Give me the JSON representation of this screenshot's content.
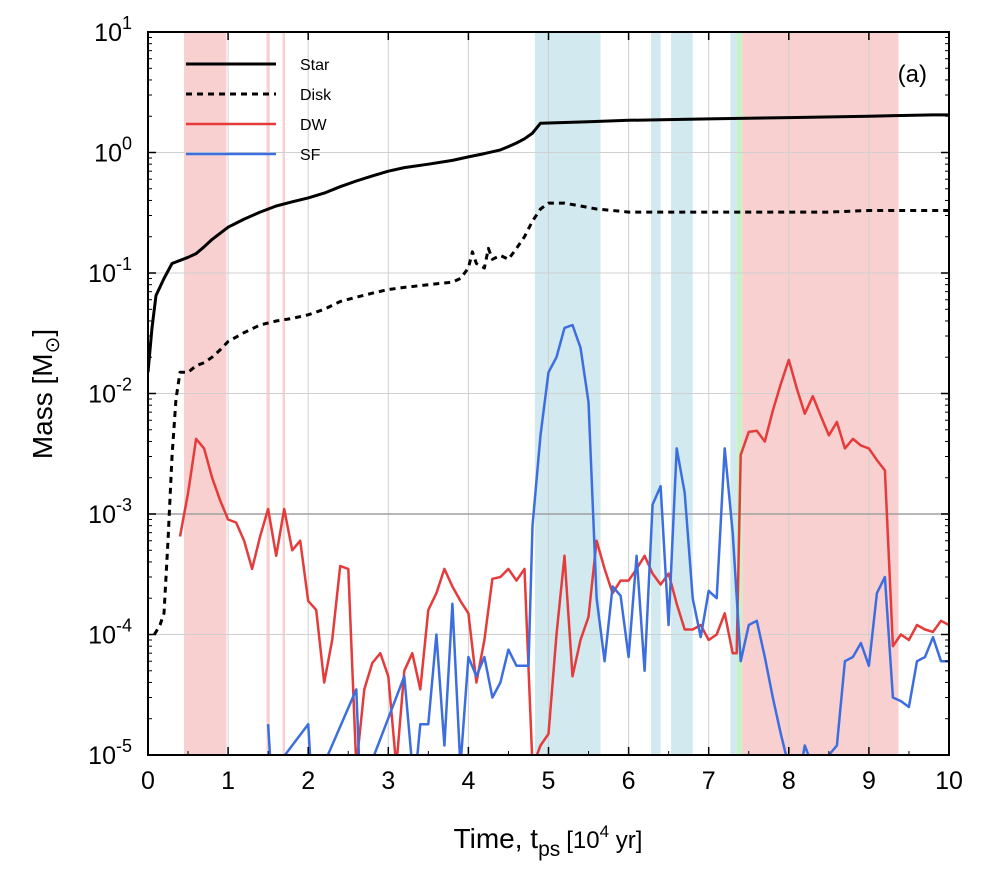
{
  "chart_data": {
    "type": "line",
    "panel_label": "(a)",
    "xlabel_main": "Time, t",
    "xlabel_sub": "ps",
    "xlabel_units_pre": "[10",
    "xlabel_units_sup": "4",
    "xlabel_units_post": " yr]",
    "ylabel_main": "Mass [M",
    "ylabel_sub": "⊙",
    "ylabel_post": "]",
    "xlim": [
      0,
      10
    ],
    "ylim": [
      1e-05,
      10
    ],
    "yscale": "log",
    "grid": true,
    "legend_position": "top-left",
    "x_ticks": [
      "0",
      "1",
      "2",
      "3",
      "4",
      "5",
      "6",
      "7",
      "8",
      "9",
      "10"
    ],
    "y_ticks": [
      {
        "base": "10",
        "exp": "-5",
        "value": 1e-05
      },
      {
        "base": "10",
        "exp": "-4",
        "value": 0.0001
      },
      {
        "base": "10",
        "exp": "-3",
        "value": 0.001
      },
      {
        "base": "10",
        "exp": "-2",
        "value": 0.01
      },
      {
        "base": "10",
        "exp": "-1",
        "value": 0.1
      },
      {
        "base": "10",
        "exp": "0",
        "value": 1
      },
      {
        "base": "10",
        "exp": "1",
        "value": 10
      }
    ],
    "reference_line": {
      "y": 0.001,
      "color": "#a0a0a0"
    },
    "shaded_regions": [
      {
        "type": "DW",
        "x0": 0.45,
        "x1": 0.98,
        "color": "#f8d0d0"
      },
      {
        "type": "DW",
        "x0": 1.48,
        "x1": 1.52,
        "color": "#f8d0d0"
      },
      {
        "type": "DW",
        "x0": 1.68,
        "x1": 1.71,
        "color": "#f8d0d0"
      },
      {
        "type": "SF",
        "x0": 4.83,
        "x1": 5.65,
        "color": "#d2e9f0"
      },
      {
        "type": "SF",
        "x0": 6.28,
        "x1": 6.4,
        "color": "#d2e9f0"
      },
      {
        "type": "SF",
        "x0": 6.53,
        "x1": 6.8,
        "color": "#d2e9f0"
      },
      {
        "type": "SF",
        "x0": 7.27,
        "x1": 7.35,
        "color": "#d2e9f0"
      },
      {
        "type": "other",
        "x0": 7.35,
        "x1": 7.42,
        "color": "#c6f2c6"
      },
      {
        "type": "DW",
        "x0": 7.42,
        "x1": 9.37,
        "color": "#f8d0d0"
      }
    ],
    "series": [
      {
        "name": "Star",
        "color": "#000000",
        "dash": "solid",
        "width": 3,
        "x": [
          0,
          0.05,
          0.1,
          0.2,
          0.3,
          0.5,
          0.6,
          0.7,
          0.8,
          1,
          1.2,
          1.4,
          1.6,
          1.8,
          2,
          2.2,
          2.4,
          2.6,
          2.8,
          3,
          3.2,
          3.5,
          3.8,
          4,
          4.2,
          4.4,
          4.5,
          4.6,
          4.7,
          4.8,
          4.9,
          5.5,
          6,
          7,
          8,
          9,
          9.8,
          10
        ],
        "y": [
          0.015,
          0.035,
          0.065,
          0.09,
          0.12,
          0.135,
          0.145,
          0.165,
          0.19,
          0.24,
          0.28,
          0.32,
          0.36,
          0.39,
          0.42,
          0.46,
          0.52,
          0.58,
          0.64,
          0.7,
          0.75,
          0.8,
          0.86,
          0.92,
          0.98,
          1.05,
          1.12,
          1.2,
          1.3,
          1.45,
          1.75,
          1.8,
          1.85,
          1.9,
          1.95,
          2.0,
          2.05,
          2.05
        ]
      },
      {
        "name": "Disk",
        "color": "#000000",
        "dash": "dotted",
        "width": 3,
        "x": [
          0.08,
          0.15,
          0.2,
          0.25,
          0.3,
          0.35,
          0.4,
          0.5,
          0.6,
          0.7,
          0.8,
          0.9,
          1,
          1.2,
          1.4,
          1.6,
          1.8,
          2,
          2.2,
          2.4,
          2.6,
          2.8,
          3,
          3.2,
          3.5,
          3.8,
          3.9,
          4,
          4.05,
          4.1,
          4.2,
          4.25,
          4.3,
          4.4,
          4.5,
          4.6,
          4.7,
          4.8,
          4.9,
          5,
          5.2,
          5.4,
          5.6,
          5.8,
          6,
          6.2,
          6.5,
          7,
          7.5,
          8,
          8.5,
          9,
          9.5,
          10
        ],
        "y": [
          0.0001,
          0.00012,
          0.00015,
          0.0006,
          0.003,
          0.009,
          0.015,
          0.015,
          0.017,
          0.018,
          0.02,
          0.023,
          0.027,
          0.032,
          0.037,
          0.04,
          0.042,
          0.045,
          0.05,
          0.058,
          0.063,
          0.068,
          0.073,
          0.076,
          0.08,
          0.084,
          0.09,
          0.11,
          0.15,
          0.12,
          0.11,
          0.16,
          0.13,
          0.14,
          0.13,
          0.16,
          0.2,
          0.27,
          0.34,
          0.38,
          0.38,
          0.36,
          0.34,
          0.33,
          0.32,
          0.32,
          0.32,
          0.32,
          0.32,
          0.32,
          0.32,
          0.33,
          0.33,
          0.33
        ]
      },
      {
        "name": "DW",
        "color": "#e53b3b",
        "dash": "solid",
        "width": 2.5,
        "x": [
          0.4,
          0.5,
          0.6,
          0.7,
          0.8,
          0.9,
          1,
          1.1,
          1.2,
          1.3,
          1.4,
          1.5,
          1.6,
          1.7,
          1.8,
          1.9,
          2,
          2.1,
          2.2,
          2.3,
          2.4,
          2.5,
          2.6,
          2.7,
          2.8,
          2.9,
          3,
          3.1,
          3.2,
          3.3,
          3.4,
          3.5,
          3.6,
          3.7,
          3.8,
          3.9,
          4,
          4.1,
          4.2,
          4.3,
          4.4,
          4.5,
          4.6,
          4.7,
          4.8,
          4.9,
          5,
          5.1,
          5.2,
          5.3,
          5.4,
          5.5,
          5.6,
          5.7,
          5.8,
          5.9,
          6,
          6.1,
          6.2,
          6.3,
          6.4,
          6.5,
          6.6,
          6.7,
          6.8,
          6.9,
          7,
          7.1,
          7.2,
          7.3,
          7.35,
          7.4,
          7.5,
          7.6,
          7.7,
          7.8,
          7.9,
          8,
          8.1,
          8.2,
          8.3,
          8.4,
          8.5,
          8.6,
          8.7,
          8.8,
          8.9,
          9,
          9.1,
          9.2,
          9.3,
          9.4,
          9.5,
          9.6,
          9.7,
          9.8,
          9.9,
          10
        ],
        "y": [
          0.00065,
          0.0015,
          0.0042,
          0.0035,
          0.002,
          0.0013,
          0.0009,
          0.00085,
          0.0006,
          0.00035,
          0.00065,
          0.0011,
          0.00045,
          0.0011,
          0.0005,
          0.0006,
          0.00019,
          0.00016,
          4e-05,
          9e-05,
          0.00037,
          0.00035,
          8e-06,
          3.5e-05,
          5.8e-05,
          7e-05,
          4.5e-05,
          8e-06,
          5e-05,
          7e-05,
          3.5e-05,
          0.00016,
          0.00022,
          0.00035,
          0.00025,
          0.00019,
          0.00015,
          4e-05,
          9e-05,
          0.00029,
          0.0003,
          0.00035,
          0.00028,
          0.00035,
          8e-06,
          1.2e-05,
          1.5e-05,
          0.0001,
          0.00045,
          4.5e-05,
          9e-05,
          0.00014,
          0.0006,
          0.00035,
          0.00022,
          0.00028,
          0.00028,
          0.00035,
          0.00045,
          0.00032,
          0.00026,
          0.00032,
          0.00018,
          0.00011,
          0.00011,
          0.00012,
          9e-05,
          0.0001,
          0.00015,
          7e-05,
          7e-05,
          0.0031,
          0.0048,
          0.0049,
          0.004,
          0.0072,
          0.012,
          0.019,
          0.011,
          0.0068,
          0.0095,
          0.0065,
          0.0045,
          0.0058,
          0.0035,
          0.0042,
          0.0037,
          0.0035,
          0.0028,
          0.0023,
          8e-05,
          0.0001,
          9e-05,
          0.00012,
          0.00011,
          0.000105,
          0.00013,
          0.00012
        ]
      },
      {
        "name": "SF",
        "color": "#3d6ee0",
        "dash": "solid",
        "width": 2.5,
        "x": [
          1.5,
          1.55,
          1.6,
          2,
          2.05,
          2.6,
          2.65,
          3.2,
          3.3,
          3.35,
          3.4,
          3.5,
          3.6,
          3.7,
          3.8,
          3.9,
          4,
          4.1,
          4.2,
          4.3,
          4.4,
          4.5,
          4.6,
          4.7,
          4.75,
          4.8,
          4.9,
          5,
          5.1,
          5.2,
          5.3,
          5.4,
          5.5,
          5.6,
          5.7,
          5.8,
          5.9,
          6,
          6.1,
          6.2,
          6.3,
          6.4,
          6.5,
          6.6,
          6.7,
          6.8,
          6.9,
          7,
          7.1,
          7.2,
          7.3,
          7.4,
          7.5,
          7.6,
          7.7,
          7.8,
          7.9,
          8,
          8.1,
          8.2,
          8.3,
          8.4,
          8.5,
          8.6,
          8.7,
          8.8,
          8.9,
          9,
          9.1,
          9.2,
          9.3,
          9.4,
          9.5,
          9.6,
          9.7,
          9.8,
          9.9,
          10
        ],
        "y": [
          1.8e-05,
          5e-06,
          8e-06,
          1.8e-05,
          5e-06,
          3.5e-05,
          5e-06,
          4.5e-05,
          8e-06,
          8e-06,
          1.8e-05,
          1.8e-05,
          0.0001,
          1.2e-05,
          0.00018,
          8e-06,
          6.5e-05,
          4.5e-05,
          6.5e-05,
          3e-05,
          4e-05,
          7.5e-05,
          5.5e-05,
          5.5e-05,
          5.5e-05,
          0.0008,
          0.0045,
          0.015,
          0.02,
          0.035,
          0.037,
          0.024,
          0.0085,
          0.0002,
          6e-05,
          0.00025,
          0.00021,
          6.5e-05,
          0.00045,
          5e-05,
          0.0012,
          0.0017,
          0.00012,
          0.0035,
          0.0015,
          0.0002,
          9.5e-05,
          0.00023,
          0.0002,
          0.0035,
          0.0007,
          6e-05,
          0.00012,
          0.00013,
          6.5e-05,
          3e-05,
          1.5e-05,
          8e-06,
          5e-06,
          1.2e-05,
          8e-06,
          9e-06,
          1e-05,
          1.2e-05,
          6e-05,
          6.5e-05,
          8.5e-05,
          5.5e-05,
          0.00022,
          0.0003,
          3e-05,
          2.8e-05,
          2.5e-05,
          6e-05,
          6.5e-05,
          9.5e-05,
          6e-05,
          6e-05
        ]
      }
    ]
  }
}
